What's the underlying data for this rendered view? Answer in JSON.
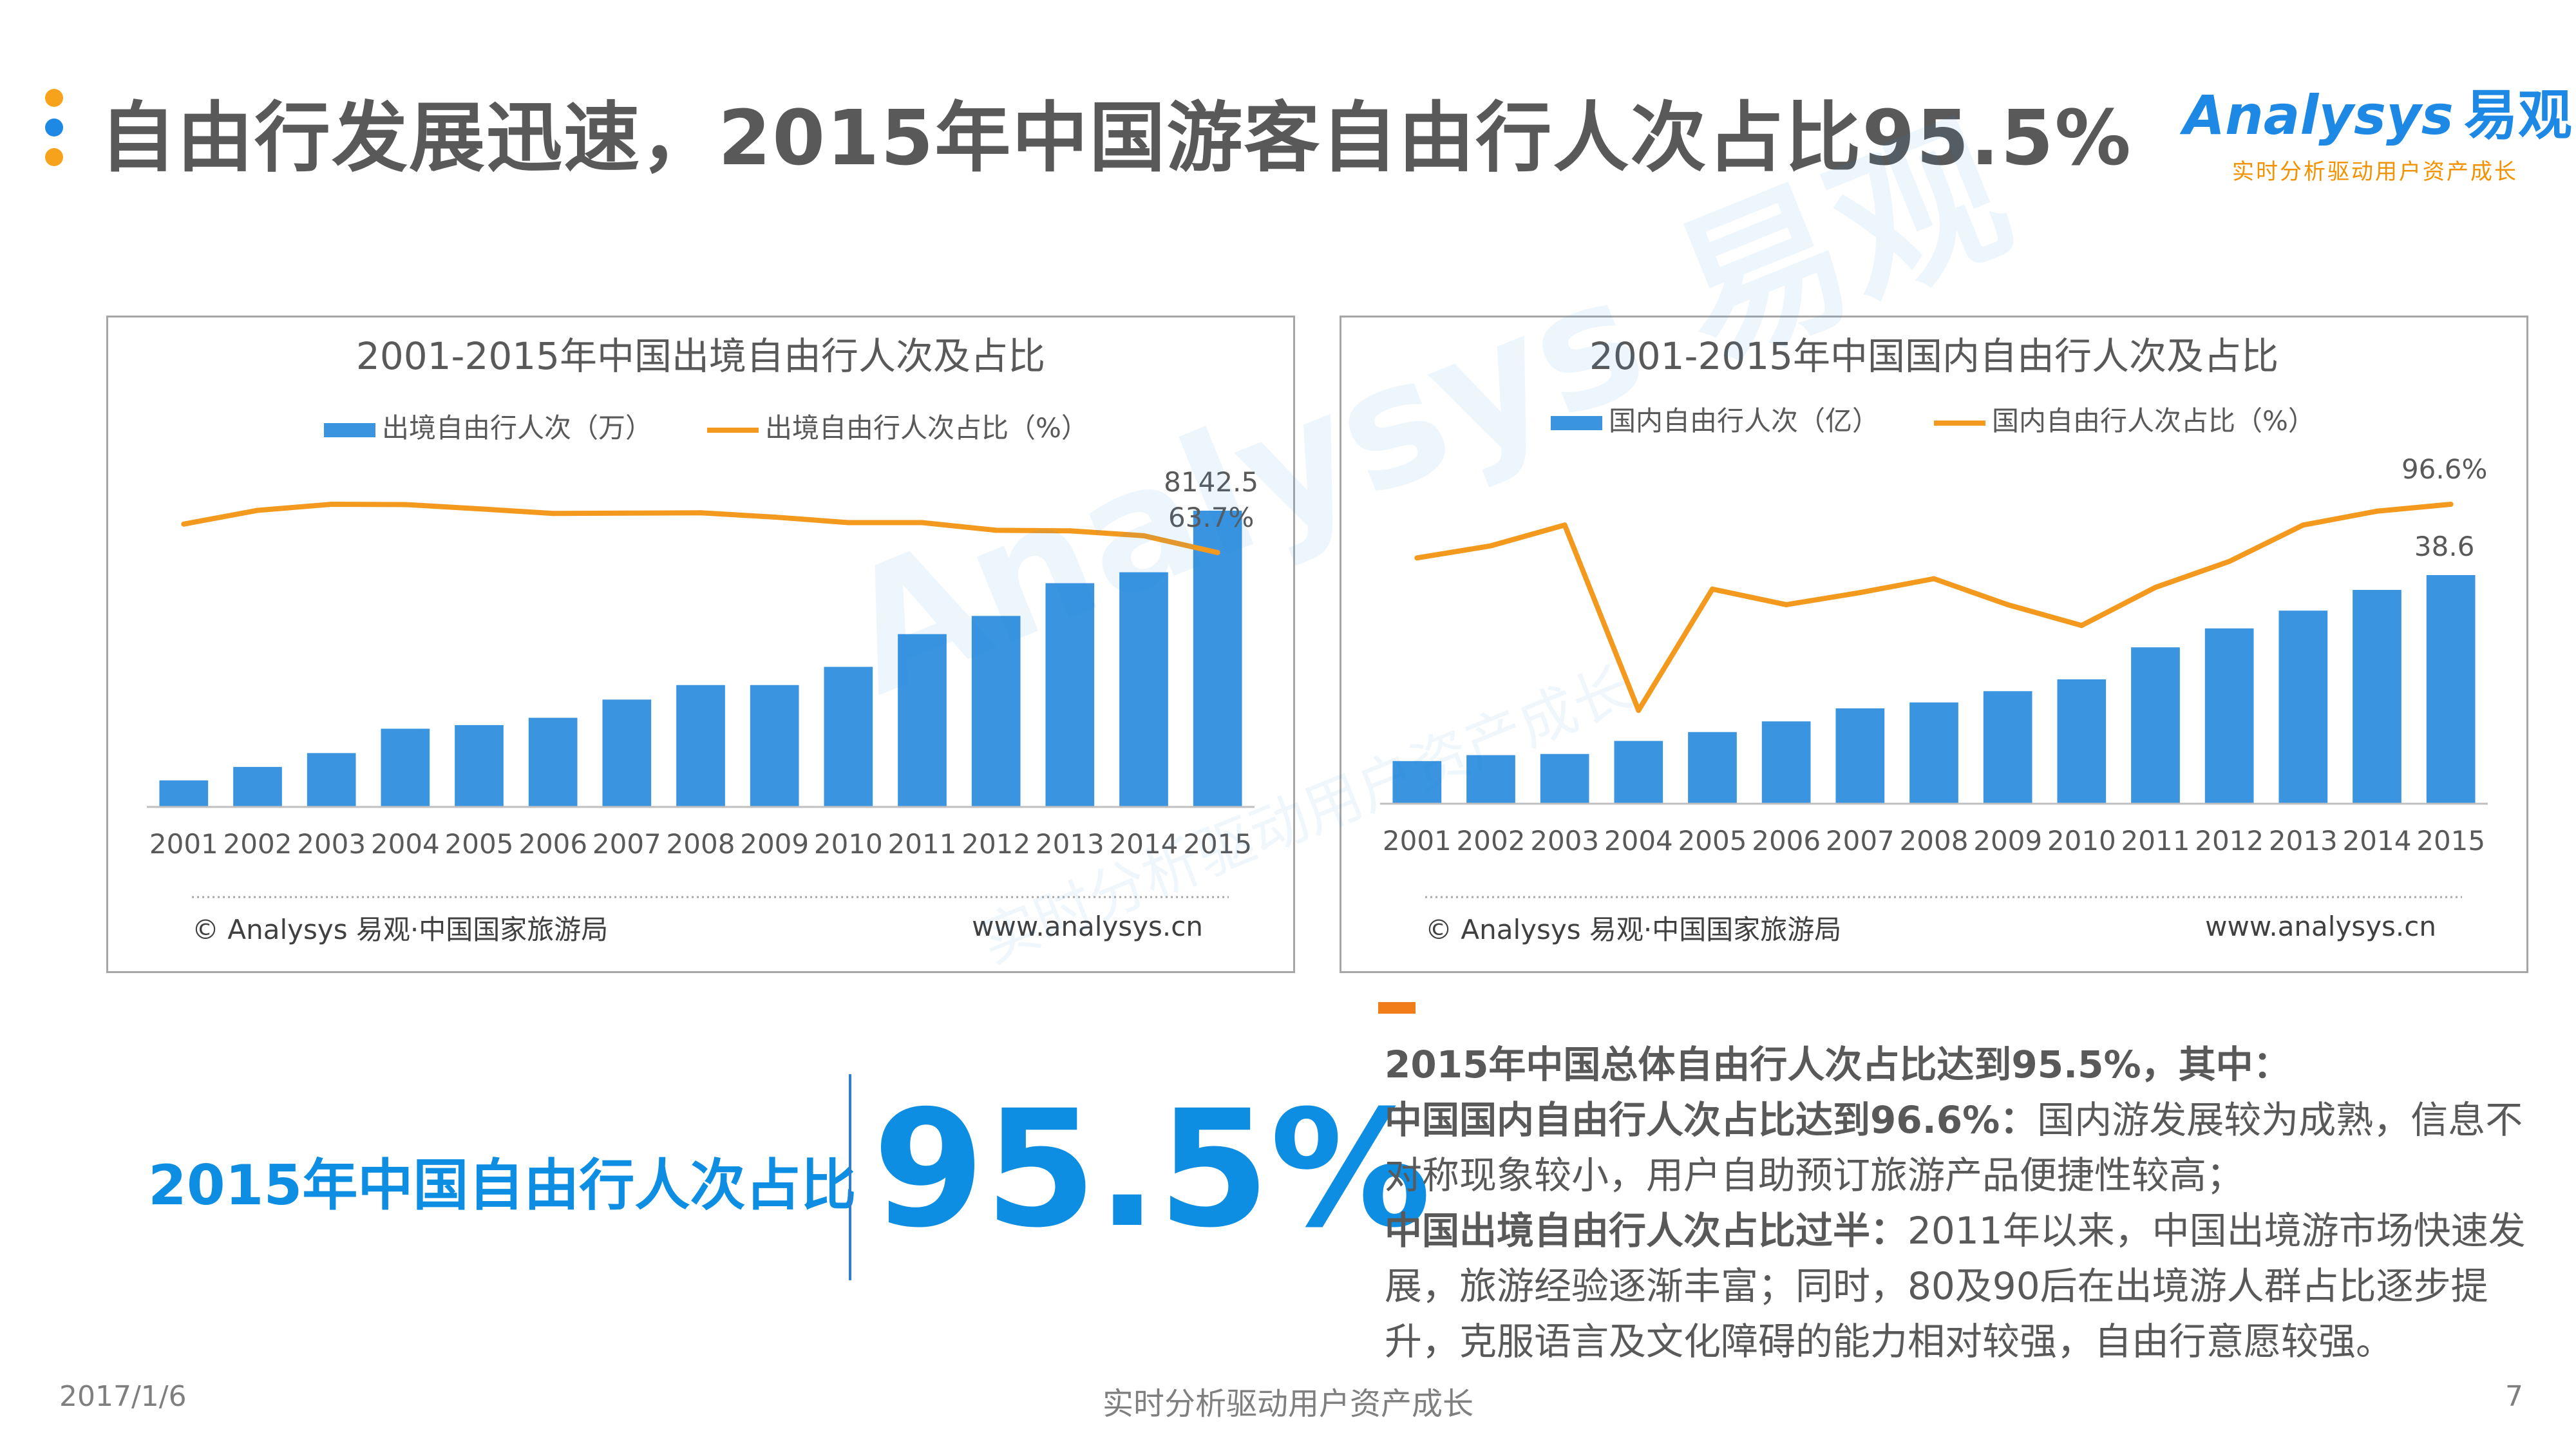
{
  "header": {
    "title": "自由行发展迅速，2015年中国游客自由行人次占比95.5%",
    "dot_colors": [
      "#f7a21b",
      "#1e88e5",
      "#f7a21b"
    ]
  },
  "logo": {
    "brand_en": "Analysys",
    "brand_cn": "易观",
    "tagline": "实时分析驱动用户资产成长"
  },
  "watermark": {
    "text": "Analysys 易观",
    "subtext": "实时分析驱动用户资产成长"
  },
  "chart_data": [
    {
      "type": "bar",
      "title": "2001-2015年中国出境自由行人次及占比",
      "categories": [
        "2001",
        "2002",
        "2003",
        "2004",
        "2005",
        "2006",
        "2007",
        "2008",
        "2009",
        "2010",
        "2011",
        "2012",
        "2013",
        "2014",
        "2015"
      ],
      "series": [
        {
          "name": "出境自由行人次（万）",
          "type": "bar",
          "color": "#3a94e0",
          "values": [
            730,
            1100,
            1480,
            2150,
            2250,
            2450,
            2950,
            3350,
            3350,
            3850,
            4750,
            5250,
            6150,
            6450,
            8142.5
          ]
        },
        {
          "name": "出境自由行人次占比（%）",
          "type": "line",
          "color": "#f39a1e",
          "values": [
            73.0,
            77.5,
            79.5,
            79.4,
            78.0,
            76.5,
            76.6,
            76.7,
            75.3,
            73.5,
            73.5,
            71.0,
            70.8,
            69.2,
            63.7
          ]
        }
      ],
      "data_labels": {
        "bar_last": "8142.5",
        "line_last": "63.7%"
      },
      "source": "© Analysys 易观·中国国家旅游局",
      "url": "www.analysys.cn",
      "legend_position": "top",
      "grid": false
    },
    {
      "type": "bar",
      "title": "2001-2015年中国国内自由行人次及占比",
      "categories": [
        "2001",
        "2002",
        "2003",
        "2004",
        "2005",
        "2006",
        "2007",
        "2008",
        "2009",
        "2010",
        "2011",
        "2012",
        "2013",
        "2014",
        "2015"
      ],
      "series": [
        {
          "name": "国内自由行人次（亿）",
          "type": "bar",
          "color": "#3a94e0",
          "values": [
            7.2,
            8.2,
            8.4,
            10.6,
            12.1,
            13.9,
            16.1,
            17.1,
            19.0,
            21.0,
            26.4,
            29.6,
            32.6,
            36.1,
            38.6
          ]
        },
        {
          "name": "国内自由行人次占比（%）",
          "type": "line",
          "color": "#f39a1e",
          "values": [
            93.5,
            94.2,
            95.4,
            84.7,
            91.7,
            90.8,
            91.5,
            92.3,
            90.8,
            89.6,
            91.8,
            93.3,
            95.4,
            96.2,
            96.6
          ]
        }
      ],
      "data_labels": {
        "bar_last": "38.6",
        "line_last": "96.6%"
      },
      "source": "© Analysys 易观·中国国家旅游局",
      "url": "www.analysys.cn",
      "legend_position": "top",
      "grid": false
    }
  ],
  "highlight": {
    "label": "2015年中国自由行人次占比",
    "value": "95.5%"
  },
  "description": {
    "p1": "2015年中国总体自由行人次占比达到95.5%，其中：",
    "p2_bold": "中国国内自由行人次占比达到96.6%：",
    "p2_text": "国内游发展较为成熟，信息不对称现象较小，用户自助预订旅游产品便捷性较高；",
    "p3_bold": "中国出境自由行人次占比过半：",
    "p3_text": "2011年以来，中国出境游市场快速发展，旅游经验逐渐丰富；同时，80及90后在出境游人群占比逐步提升，克服语言及文化障碍的能力相对较强，自由行意愿较强。"
  },
  "footer": {
    "date": "2017/1/6",
    "center": "实时分析驱动用户资产成长",
    "page": "7"
  }
}
